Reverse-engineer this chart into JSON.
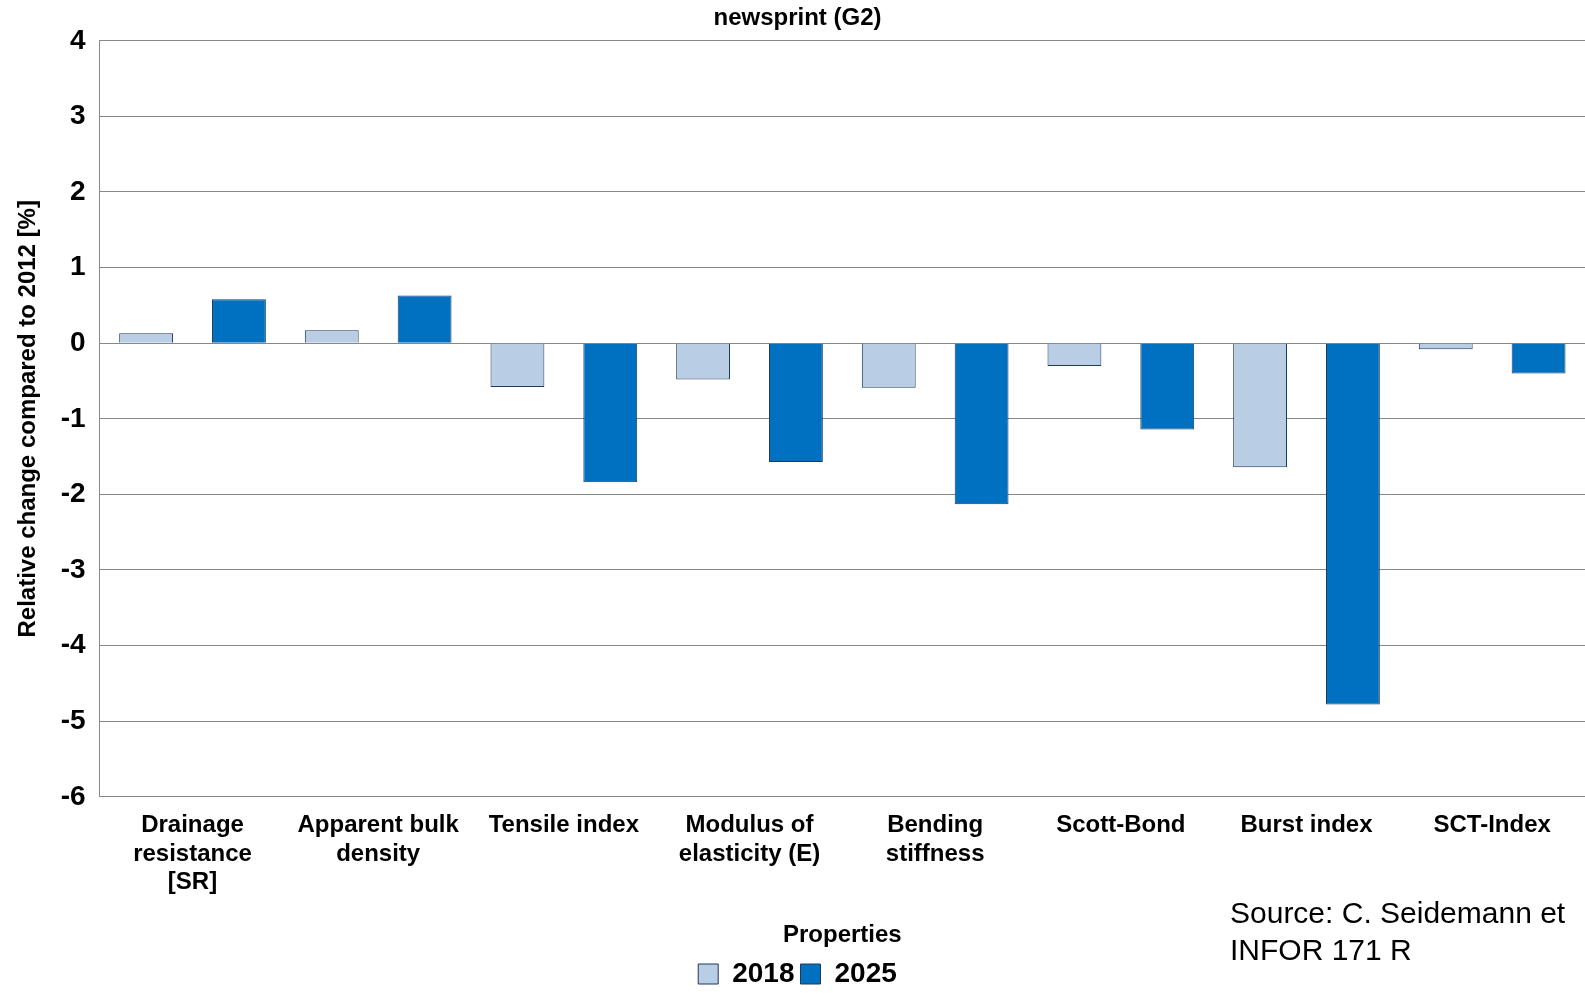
{
  "chart_data": {
    "type": "bar",
    "title": "newsprint (G2)",
    "xlabel": "Properties",
    "ylabel": "Relative change compared to 2012 [%]",
    "categories": [
      "Drainage resistance [SR]",
      "Apparent bulk density",
      "Tensile index",
      "Modulus of elasticity (E)",
      "Bending stiffness",
      "Scott-Bond",
      "Burst index",
      "SCT-Index"
    ],
    "series": [
      {
        "name": "2018",
        "color": "#b9cde5",
        "values": [
          0.13,
          0.17,
          -0.58,
          -0.48,
          -0.59,
          -0.3,
          -1.64,
          -0.08
        ]
      },
      {
        "name": "2025",
        "color": "#0070c0",
        "values": [
          0.58,
          0.63,
          -1.84,
          -1.57,
          -2.13,
          -1.14,
          -4.78,
          -0.4
        ]
      }
    ],
    "ylim": [
      -6,
      4
    ],
    "yticks": [
      -6,
      -5,
      -4,
      -3,
      -2,
      -1,
      0,
      1,
      2,
      3,
      4
    ],
    "grid": "y",
    "legend": "bottom",
    "annotations": [
      "Source: C. Seidemann et\nINFOR 171 R"
    ]
  }
}
